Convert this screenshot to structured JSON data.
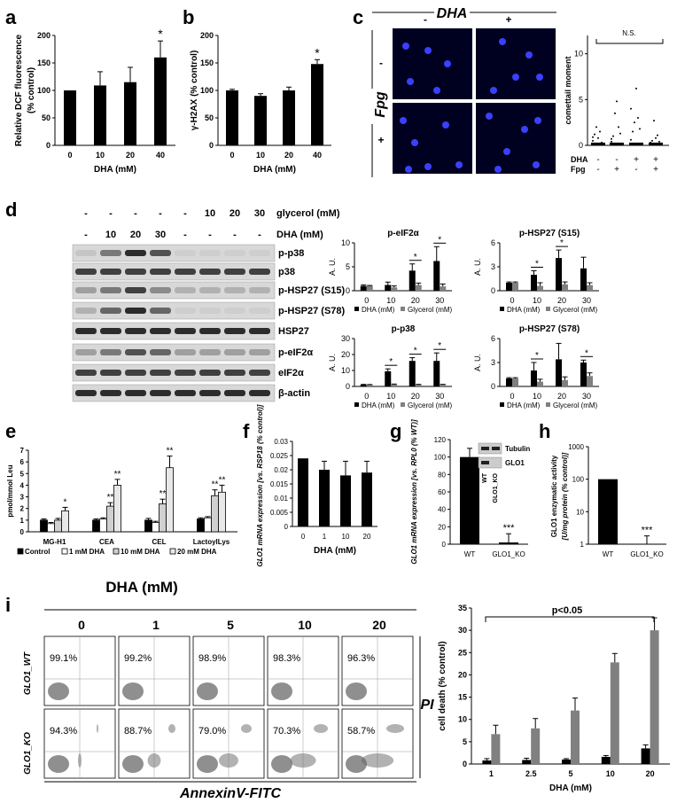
{
  "panels": {
    "a": "a",
    "b": "b",
    "c": "c",
    "d": "d",
    "e": "e",
    "f": "f",
    "g": "g",
    "h": "h",
    "i": "i"
  },
  "colors": {
    "black": "#000000",
    "grey": "#808080",
    "white": "#ffffff",
    "blot_band": "#1a1a1a",
    "comet_bg": "#000020",
    "comet_blue": "#3a40ff"
  },
  "panel_c": {
    "dha_title": "DHA",
    "fpg_title": "Fpg",
    "minus": "-",
    "plus": "+",
    "ylabel": "comettail moment",
    "ns": "N.S.",
    "row_labels": [
      "DHA",
      "Fpg"
    ],
    "dha_signs": [
      "-",
      "-",
      "+",
      "+"
    ],
    "fpg_signs": [
      "-",
      "+",
      "-",
      "+"
    ],
    "yticks": [
      "0",
      "5",
      "10"
    ]
  },
  "panel_d": {
    "glycerol_row": [
      "-",
      "-",
      "-",
      "-",
      "-",
      "10",
      "20",
      "30"
    ],
    "glycerol_label": "glycerol (mM)",
    "dha_row": [
      "-",
      "10",
      "20",
      "30",
      "-",
      "-",
      "-",
      "-"
    ],
    "dha_label": "DHA (mM)",
    "blots": [
      "p-p38",
      "p38",
      "p-HSP27 (S15)",
      "p-HSP27 (S78)",
      "HSP27",
      "p-eIF2α",
      "eIF2α",
      "β-actin"
    ],
    "legend_dha": "DHA (mM)",
    "legend_gly": "Glycerol (mM)"
  },
  "panel_i": {
    "title": "DHA (mM)",
    "cols": [
      "0",
      "1",
      "5",
      "10",
      "20"
    ],
    "row1_label": "GLO1_WT",
    "row2_label": "GLO1_KO",
    "row1_pct": [
      "99.1%",
      "99.2%",
      "98.9%",
      "98.3%",
      "96.3%"
    ],
    "row2_pct": [
      "94.3%",
      "88.7%",
      "79.0%",
      "70.3%",
      "58.7%"
    ],
    "xlabel": "AnnexinV-FITC",
    "ylabel": "PI"
  },
  "chart_data": [
    {
      "panel": "a",
      "type": "bar",
      "categories": [
        "0",
        "10",
        "20",
        "40"
      ],
      "values": [
        100,
        109,
        115,
        160
      ],
      "errors": [
        0,
        25,
        27,
        30
      ],
      "xlabel": "DHA (mM)",
      "ylabel": "Relative DCF fluorescence (% control)",
      "ylim": [
        0,
        200
      ],
      "yticks": [
        0,
        50,
        100,
        150,
        200
      ],
      "annotations": [
        "",
        "",
        "",
        "*"
      ]
    },
    {
      "panel": "b",
      "type": "bar",
      "categories": [
        "0",
        "10",
        "20",
        "40"
      ],
      "values": [
        100,
        90,
        100,
        148
      ],
      "errors": [
        2,
        4,
        6,
        8
      ],
      "xlabel": "DHA (mM)",
      "ylabel": "γ-H2AX (% control)",
      "ylim": [
        0,
        200
      ],
      "yticks": [
        0,
        50,
        100,
        150,
        200
      ],
      "annotations": [
        "",
        "",
        "",
        "*"
      ]
    },
    {
      "panel": "c",
      "type": "scatter",
      "ylim": [
        0,
        12
      ],
      "ylabel": "comettail moment"
    },
    {
      "panel": "d1",
      "type": "bar",
      "title": "p-eIF2α",
      "ylabel": "A. U.",
      "categories": [
        "0",
        "10",
        "20",
        "30"
      ],
      "ylim": [
        0,
        10
      ],
      "yticks": [
        0,
        5,
        10
      ],
      "series": [
        {
          "name": "DHA (mM)",
          "values": [
            1,
            1.2,
            4.2,
            6.2
          ],
          "errors": [
            0.2,
            0.6,
            1.4,
            3.0
          ]
        },
        {
          "name": "Glycerol (mM)",
          "values": [
            1,
            0.7,
            1.2,
            0.9
          ],
          "errors": [
            0.1,
            0.3,
            0.4,
            0.5
          ]
        }
      ],
      "sig": [
        false,
        false,
        true,
        true
      ]
    },
    {
      "panel": "d2",
      "type": "bar",
      "title": "p-HSP27 (S15)",
      "ylabel": "A. U.",
      "categories": [
        "0",
        "10",
        "20",
        "30"
      ],
      "ylim": [
        0,
        6
      ],
      "yticks": [
        0,
        3,
        6
      ],
      "series": [
        {
          "name": "DHA (mM)",
          "values": [
            1,
            2.0,
            4.1,
            2.8
          ],
          "errors": [
            0.1,
            0.5,
            1.0,
            1.4
          ]
        },
        {
          "name": "Glycerol (mM)",
          "values": [
            1,
            0.6,
            0.8,
            0.7
          ],
          "errors": [
            0.1,
            0.4,
            0.3,
            0.3
          ]
        }
      ],
      "sig": [
        false,
        true,
        true,
        false
      ]
    },
    {
      "panel": "d3",
      "type": "bar",
      "title": "p-p38",
      "ylabel": "A. U.",
      "categories": [
        "0",
        "10",
        "20",
        "30"
      ],
      "ylim": [
        0,
        30
      ],
      "yticks": [
        0,
        10,
        20,
        30
      ],
      "series": [
        {
          "name": "DHA (mM)",
          "values": [
            1,
            9.5,
            16,
            16
          ],
          "errors": [
            0.3,
            1.5,
            2.0,
            5.0
          ]
        },
        {
          "name": "Glycerol (mM)",
          "values": [
            1,
            1.2,
            1.0,
            1.0
          ],
          "errors": [
            0.2,
            0.3,
            0.3,
            0.3
          ]
        }
      ],
      "sig": [
        false,
        true,
        true,
        true
      ]
    },
    {
      "panel": "d4",
      "type": "bar",
      "title": "p-HSP27 (S78)",
      "ylabel": "A. U.",
      "categories": [
        "0",
        "10",
        "20",
        "30"
      ],
      "ylim": [
        0,
        6
      ],
      "yticks": [
        0,
        3,
        6
      ],
      "series": [
        {
          "name": "DHA (mM)",
          "values": [
            1,
            2.0,
            3.4,
            3.0
          ],
          "errors": [
            0.1,
            1.0,
            2.0,
            0.3
          ]
        },
        {
          "name": "Glycerol (mM)",
          "values": [
            1,
            0.6,
            0.8,
            1.3
          ],
          "errors": [
            0.1,
            0.3,
            0.4,
            0.4
          ]
        }
      ],
      "sig": [
        false,
        true,
        false,
        true
      ]
    },
    {
      "panel": "e",
      "type": "bar",
      "ylabel": "pmol/mmol Leu",
      "categories": [
        "MG-H1",
        "CEA",
        "CEL",
        "LactoylLys"
      ],
      "ylim": [
        0,
        7
      ],
      "yticks": [
        0,
        1,
        2,
        3,
        4,
        5,
        6,
        7
      ],
      "series": [
        {
          "name": "Control",
          "values": [
            1.0,
            1.0,
            1.0,
            1.1
          ],
          "errors": [
            0.1,
            0.1,
            0.15,
            0.1
          ]
        },
        {
          "name": "1 mM DHA",
          "values": [
            0.7,
            1.1,
            0.8,
            1.2
          ],
          "errors": [
            0.1,
            0.1,
            0.1,
            0.1
          ]
        },
        {
          "name": "10 mM DHA",
          "values": [
            1.0,
            2.2,
            2.4,
            3.1
          ],
          "errors": [
            0.15,
            0.3,
            0.4,
            0.5
          ]
        },
        {
          "name": "20 mM DHA",
          "values": [
            1.8,
            4.0,
            5.5,
            3.4
          ],
          "errors": [
            0.3,
            0.5,
            1.0,
            0.6
          ]
        }
      ],
      "annotations": [
        [
          "",
          "",
          "",
          "*"
        ],
        [
          "",
          "",
          "**",
          "**"
        ],
        [
          "",
          "",
          "**",
          "**"
        ],
        [
          "",
          "",
          "**",
          "**"
        ]
      ]
    },
    {
      "panel": "f",
      "type": "bar",
      "categories": [
        "0",
        "1",
        "10",
        "20"
      ],
      "values": [
        0.024,
        0.02,
        0.018,
        0.019
      ],
      "errors": [
        0,
        0.003,
        0.005,
        0.004
      ],
      "xlabel": "DHA (mM)",
      "ylabel": "GLO1 mRNA expression [vs. RSP18 (% control)]",
      "ylim": [
        0,
        0.03
      ],
      "yticks": [
        "0",
        "0.005",
        "0.01",
        "0.015",
        "0.02",
        "0.025",
        "0.03"
      ]
    },
    {
      "panel": "g",
      "type": "bar",
      "categories": [
        "WT",
        "GLO1_KO"
      ],
      "values": [
        100,
        2
      ],
      "errors": [
        10,
        10
      ],
      "ylabel": "GLO1 mRNA expression [vs. RPL0 (% WT)]",
      "ylim": [
        0,
        120
      ],
      "yticks": [
        0,
        20,
        40,
        60,
        80,
        100,
        120
      ],
      "annotations": [
        "",
        "***"
      ],
      "blot_labels": [
        "Tubulin",
        "GLO1"
      ],
      "lane_labels": [
        "WT",
        "GLO1_KO"
      ]
    },
    {
      "panel": "h",
      "type": "bar",
      "categories": [
        "WT",
        "GLO1_KO"
      ],
      "values": [
        100,
        1
      ],
      "errors": [
        0,
        0.8
      ],
      "ylabel": "GLO1 enzymatic activity [U/mg protein (% control)]",
      "yscale": "log",
      "ylim": [
        1,
        1000
      ],
      "yticks": [
        "1",
        "10",
        "100",
        "1000"
      ],
      "annotations": [
        "",
        "***"
      ]
    },
    {
      "panel": "i",
      "type": "bar",
      "categories": [
        "1",
        "2.5",
        "5",
        "10",
        "20"
      ],
      "series": [
        {
          "name": "GLO1_WT",
          "values": [
            0.8,
            0.9,
            1.0,
            1.6,
            3.5
          ],
          "errors": [
            0.4,
            0.4,
            0.2,
            0.3,
            0.8
          ]
        },
        {
          "name": "GLO1_KO",
          "values": [
            6.7,
            8.0,
            12.0,
            22.8,
            30.0
          ],
          "errors": [
            2.0,
            2.2,
            2.8,
            2.0,
            2.8
          ]
        }
      ],
      "xlabel": "DHA (mM)",
      "ylabel": "cell death (% control)",
      "ylim": [
        0,
        35
      ],
      "yticks": [
        0,
        5,
        10,
        15,
        20,
        25,
        30,
        35
      ],
      "annotation": "p<0.05"
    }
  ]
}
